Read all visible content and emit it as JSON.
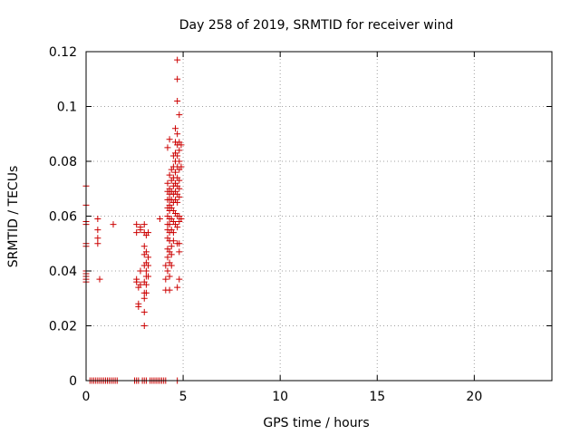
{
  "chart_data": {
    "type": "scatter",
    "title": "Day 258 of 2019, SRMTID for receiver wind",
    "xlabel": "GPS time / hours",
    "ylabel": "SRMTID / TECUs",
    "xlim": [
      0,
      24
    ],
    "ylim": [
      0,
      0.12
    ],
    "x_ticks": [
      0,
      5,
      10,
      15,
      20
    ],
    "x_tick_labels": [
      "0",
      "5",
      "10",
      "15",
      "20"
    ],
    "y_ticks": [
      0,
      0.02,
      0.04,
      0.06,
      0.08,
      0.1,
      0.12
    ],
    "y_tick_labels": [
      "0",
      "0.02",
      "0.04",
      "0.06",
      "0.08",
      "0.1",
      "0.12"
    ],
    "grid": true,
    "marker": "plus",
    "color": "#cc0000",
    "series": [
      {
        "points": [
          [
            0.0,
            0.071
          ],
          [
            0.0,
            0.064
          ],
          [
            0.0,
            0.058
          ],
          [
            0.0,
            0.057
          ],
          [
            0.0,
            0.05
          ],
          [
            0.0,
            0.049
          ],
          [
            0.0,
            0.04
          ],
          [
            0.0,
            0.039
          ],
          [
            0.0,
            0.038
          ],
          [
            0.0,
            0.037
          ],
          [
            0.0,
            0.036
          ],
          [
            0.6,
            0.059
          ],
          [
            0.6,
            0.055
          ],
          [
            0.6,
            0.052
          ],
          [
            0.6,
            0.05
          ],
          [
            0.7,
            0.037
          ],
          [
            1.4,
            0.057
          ],
          [
            2.6,
            0.057
          ],
          [
            2.6,
            0.054
          ],
          [
            2.6,
            0.037
          ],
          [
            2.6,
            0.036
          ],
          [
            2.7,
            0.034
          ],
          [
            2.7,
            0.028
          ],
          [
            2.7,
            0.027
          ],
          [
            2.8,
            0.055
          ],
          [
            2.8,
            0.056
          ],
          [
            2.8,
            0.04
          ],
          [
            2.8,
            0.035
          ],
          [
            3.0,
            0.057
          ],
          [
            3.0,
            0.054
          ],
          [
            3.0,
            0.049
          ],
          [
            3.0,
            0.046
          ],
          [
            3.0,
            0.042
          ],
          [
            3.0,
            0.036
          ],
          [
            3.0,
            0.032
          ],
          [
            3.0,
            0.03
          ],
          [
            3.0,
            0.025
          ],
          [
            3.0,
            0.02
          ],
          [
            3.1,
            0.053
          ],
          [
            3.1,
            0.047
          ],
          [
            3.1,
            0.043
          ],
          [
            3.1,
            0.04
          ],
          [
            3.1,
            0.038
          ],
          [
            3.1,
            0.035
          ],
          [
            3.1,
            0.032
          ],
          [
            3.2,
            0.054
          ],
          [
            3.2,
            0.045
          ],
          [
            3.2,
            0.042
          ],
          [
            3.2,
            0.038
          ],
          [
            3.8,
            0.059
          ],
          [
            4.1,
            0.042
          ],
          [
            4.1,
            0.037
          ],
          [
            4.1,
            0.033
          ],
          [
            4.2,
            0.085
          ],
          [
            4.2,
            0.072
          ],
          [
            4.2,
            0.069
          ],
          [
            4.2,
            0.066
          ],
          [
            4.2,
            0.063
          ],
          [
            4.2,
            0.06
          ],
          [
            4.2,
            0.057
          ],
          [
            4.2,
            0.055
          ],
          [
            4.2,
            0.052
          ],
          [
            4.2,
            0.048
          ],
          [
            4.2,
            0.045
          ],
          [
            4.2,
            0.04
          ],
          [
            4.3,
            0.088
          ],
          [
            4.3,
            0.075
          ],
          [
            4.3,
            0.07
          ],
          [
            4.3,
            0.068
          ],
          [
            4.3,
            0.066
          ],
          [
            4.3,
            0.064
          ],
          [
            4.3,
            0.062
          ],
          [
            4.3,
            0.059
          ],
          [
            4.3,
            0.057
          ],
          [
            4.3,
            0.054
          ],
          [
            4.3,
            0.051
          ],
          [
            4.3,
            0.047
          ],
          [
            4.3,
            0.043
          ],
          [
            4.3,
            0.038
          ],
          [
            4.3,
            0.033
          ],
          [
            4.4,
            0.077
          ],
          [
            4.4,
            0.073
          ],
          [
            4.4,
            0.069
          ],
          [
            4.4,
            0.066
          ],
          [
            4.4,
            0.063
          ],
          [
            4.4,
            0.059
          ],
          [
            4.4,
            0.055
          ],
          [
            4.4,
            0.049
          ],
          [
            4.4,
            0.046
          ],
          [
            4.4,
            0.042
          ],
          [
            4.5,
            0.082
          ],
          [
            4.5,
            0.078
          ],
          [
            4.5,
            0.074
          ],
          [
            4.5,
            0.071
          ],
          [
            4.5,
            0.068
          ],
          [
            4.5,
            0.065
          ],
          [
            4.5,
            0.062
          ],
          [
            4.5,
            0.058
          ],
          [
            4.5,
            0.054
          ],
          [
            4.5,
            0.051
          ],
          [
            4.6,
            0.092
          ],
          [
            4.6,
            0.087
          ],
          [
            4.6,
            0.083
          ],
          [
            4.6,
            0.08
          ],
          [
            4.6,
            0.076
          ],
          [
            4.6,
            0.072
          ],
          [
            4.6,
            0.069
          ],
          [
            4.6,
            0.066
          ],
          [
            4.6,
            0.061
          ],
          [
            4.6,
            0.057
          ],
          [
            4.7,
            0.117
          ],
          [
            4.7,
            0.11
          ],
          [
            4.7,
            0.102
          ],
          [
            4.7,
            0.09
          ],
          [
            4.7,
            0.086
          ],
          [
            4.7,
            0.082
          ],
          [
            4.7,
            0.078
          ],
          [
            4.7,
            0.074
          ],
          [
            4.7,
            0.071
          ],
          [
            4.7,
            0.068
          ],
          [
            4.7,
            0.065
          ],
          [
            4.7,
            0.06
          ],
          [
            4.7,
            0.056
          ],
          [
            4.7,
            0.05
          ],
          [
            4.7,
            0.034
          ],
          [
            4.8,
            0.097
          ],
          [
            4.8,
            0.087
          ],
          [
            4.8,
            0.084
          ],
          [
            4.8,
            0.08
          ],
          [
            4.8,
            0.077
          ],
          [
            4.8,
            0.073
          ],
          [
            4.8,
            0.07
          ],
          [
            4.8,
            0.067
          ],
          [
            4.8,
            0.06
          ],
          [
            4.8,
            0.058
          ],
          [
            4.8,
            0.05
          ],
          [
            4.8,
            0.047
          ],
          [
            4.8,
            0.037
          ],
          [
            4.9,
            0.086
          ],
          [
            4.9,
            0.078
          ],
          [
            4.9,
            0.059
          ]
        ],
        "zero_points_x": [
          0.2,
          0.3,
          0.4,
          0.5,
          0.6,
          0.7,
          0.8,
          0.9,
          1.0,
          1.1,
          1.2,
          1.3,
          1.4,
          1.5,
          1.6,
          2.5,
          2.6,
          2.7,
          2.9,
          3.0,
          3.1,
          3.3,
          3.4,
          3.5,
          3.6,
          3.7,
          3.8,
          3.9,
          4.0,
          4.1,
          4.7
        ]
      }
    ]
  }
}
